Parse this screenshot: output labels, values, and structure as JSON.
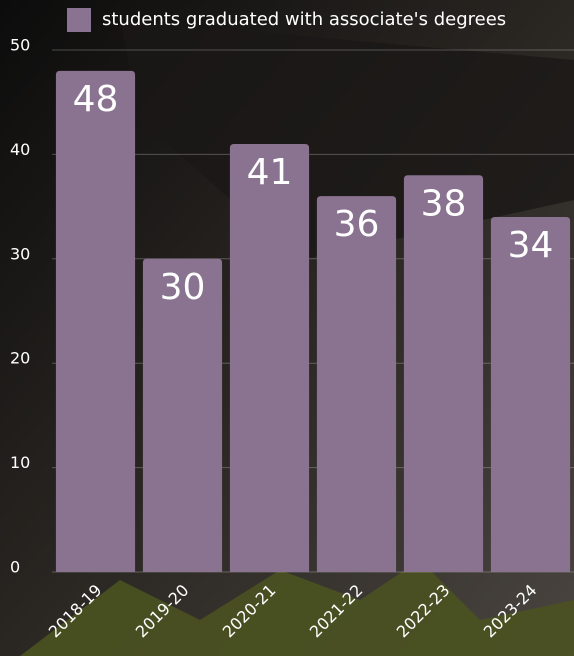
{
  "chart_data": {
    "type": "bar",
    "categories": [
      "2018-19",
      "2019-20",
      "2020-21",
      "2021-22",
      "2022-23",
      "2023-24"
    ],
    "series": [
      {
        "name": "students graduated with associate's degrees",
        "color": "#8a7390",
        "values": [
          48,
          30,
          41,
          36,
          38,
          34
        ]
      }
    ],
    "ylim": [
      0,
      50
    ],
    "yticks": [
      0,
      10,
      20,
      30,
      40,
      50
    ],
    "grid": true,
    "legend": "top"
  }
}
